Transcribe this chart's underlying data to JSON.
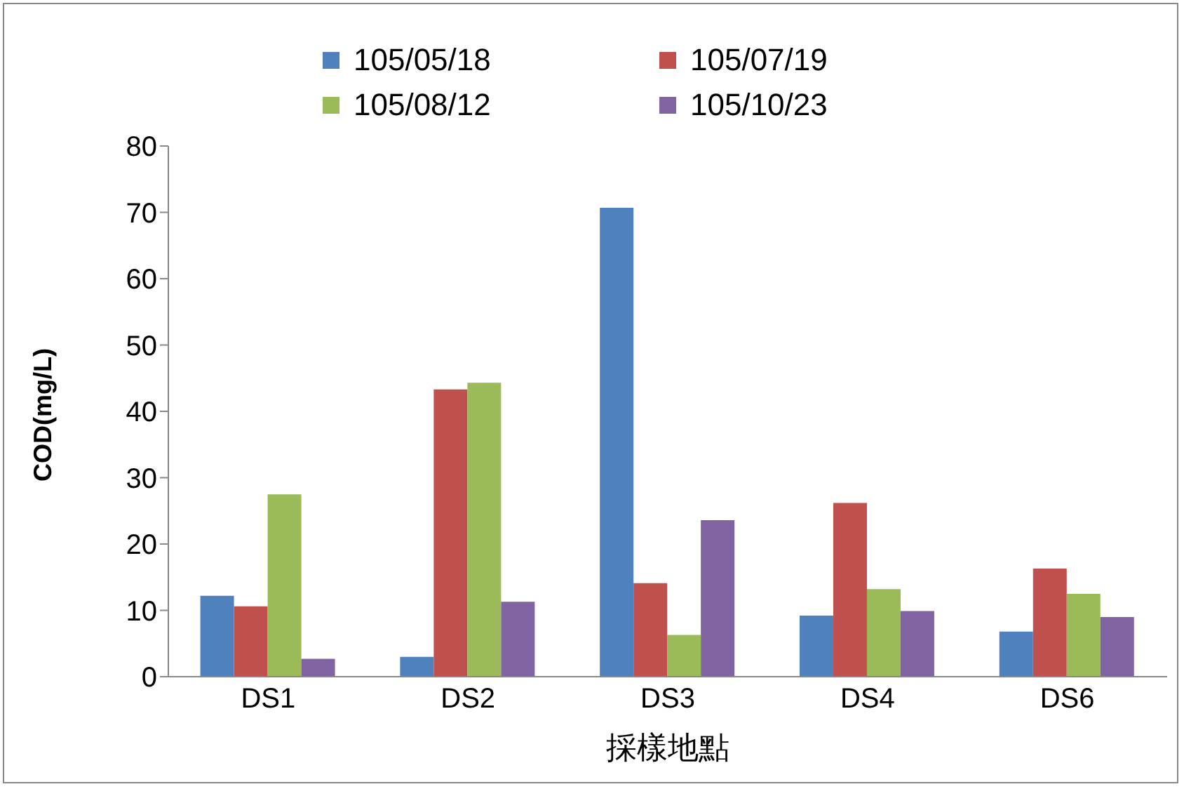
{
  "chart_data": {
    "type": "bar",
    "xlabel": "採樣地點",
    "ylabel": "COD(mg/L)",
    "categories": [
      "DS1",
      "DS2",
      "DS3",
      "DS4",
      "DS6"
    ],
    "series": [
      {
        "name": "105/05/18",
        "color": "#4f81bd",
        "values": [
          12.2,
          3,
          70.7,
          9.2,
          6.8
        ]
      },
      {
        "name": "105/07/19",
        "color": "#c0504d",
        "values": [
          10.6,
          43.3,
          14.1,
          26.2,
          16.3
        ]
      },
      {
        "name": "105/08/12",
        "color": "#9bbb59",
        "values": [
          27.5,
          44.3,
          6.3,
          13.2,
          12.5
        ]
      },
      {
        "name": "105/10/23",
        "color": "#8064a2",
        "values": [
          2.7,
          11.3,
          23.6,
          9.9,
          9.0
        ]
      }
    ],
    "ylim": [
      0,
      80
    ],
    "yticks": [
      0,
      10,
      20,
      30,
      40,
      50,
      60,
      70,
      80
    ],
    "grid": false,
    "legend": "top"
  }
}
